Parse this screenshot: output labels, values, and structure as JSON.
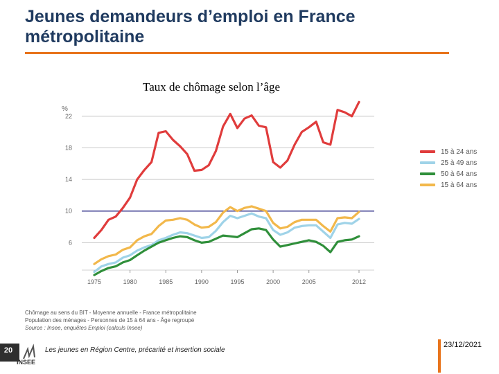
{
  "header": {
    "title_line1": "Jeunes demandeurs d’emploi en France",
    "title_line2": "métropolitaine"
  },
  "subtitle": "Taux de chômage selon l’âge",
  "colors": {
    "accent": "#e8741c",
    "title": "#1f3a5f",
    "reference_line": "#3b3b8f"
  },
  "chart_data": {
    "type": "line",
    "ylabel": "%",
    "xlim": [
      1975,
      2012
    ],
    "ylim": [
      2,
      24
    ],
    "yticks": [
      6,
      10,
      14,
      18,
      22
    ],
    "xticks": [
      "1975",
      "1980",
      "1985",
      "1990",
      "1995",
      "2000",
      "2005",
      "2012"
    ],
    "xtick_values": [
      1975,
      1980,
      1985,
      1990,
      1995,
      2000,
      2005,
      2012
    ],
    "reference_line": 10,
    "x": [
      1975,
      1976,
      1977,
      1978,
      1979,
      1980,
      1981,
      1982,
      1983,
      1984,
      1985,
      1986,
      1987,
      1988,
      1989,
      1990,
      1991,
      1992,
      1993,
      1994,
      1995,
      1996,
      1997,
      1998,
      1999,
      2000,
      2001,
      2002,
      2003,
      2004,
      2005,
      2006,
      2007,
      2008,
      2009,
      2010,
      2011,
      2012
    ],
    "series": [
      {
        "name": "15 à 24 ans",
        "color": "#e03c3c",
        "values": [
          6.6,
          7.6,
          8.9,
          9.3,
          10.4,
          11.7,
          14.0,
          15.2,
          16.2,
          19.9,
          20.1,
          19.0,
          18.2,
          17.2,
          15.1,
          15.2,
          15.8,
          17.6,
          20.7,
          22.3,
          20.5,
          21.7,
          22.1,
          20.8,
          20.6,
          16.2,
          15.5,
          16.4,
          18.4,
          20.0,
          20.6,
          21.3,
          18.7,
          18.4,
          22.8,
          22.5,
          22.0,
          23.8
        ]
      },
      {
        "name": "25 à 49 ans",
        "color": "#9fd3e8",
        "values": [
          2.3,
          3.0,
          3.3,
          3.5,
          4.1,
          4.4,
          5.0,
          5.4,
          5.7,
          6.3,
          6.6,
          7.0,
          7.3,
          7.2,
          6.9,
          6.6,
          6.7,
          7.5,
          8.6,
          9.4,
          9.1,
          9.4,
          9.7,
          9.3,
          9.1,
          7.6,
          7.0,
          7.3,
          7.9,
          8.1,
          8.2,
          8.2,
          7.4,
          6.6,
          8.3,
          8.5,
          8.4,
          9.0
        ]
      },
      {
        "name": "50 à 64 ans",
        "color": "#2f8f3a",
        "values": [
          1.9,
          2.4,
          2.8,
          3.0,
          3.5,
          3.8,
          4.4,
          5.0,
          5.5,
          6.0,
          6.3,
          6.6,
          6.8,
          6.7,
          6.3,
          6.0,
          6.1,
          6.5,
          6.9,
          6.8,
          6.7,
          7.2,
          7.7,
          7.8,
          7.6,
          6.4,
          5.5,
          5.7,
          5.9,
          6.1,
          6.3,
          6.1,
          5.6,
          4.8,
          6.1,
          6.3,
          6.4,
          6.8
        ]
      },
      {
        "name": "15 à 64 ans",
        "color": "#f2b84b",
        "values": [
          3.3,
          3.9,
          4.3,
          4.5,
          5.1,
          5.4,
          6.3,
          6.8,
          7.1,
          8.1,
          8.8,
          8.9,
          9.1,
          8.9,
          8.3,
          7.9,
          8.0,
          8.6,
          9.8,
          10.5,
          10.0,
          10.4,
          10.6,
          10.3,
          10.0,
          8.5,
          7.8,
          8.0,
          8.6,
          8.9,
          8.9,
          8.9,
          8.1,
          7.4,
          9.1,
          9.2,
          9.1,
          9.9
        ]
      }
    ]
  },
  "notes": {
    "line1": "Chômage au sens du BIT - Moyenne annuelle - France métropolitaine",
    "line2": "Population des ménages - Personnes de 15 à 64 ans - Âge regroupé",
    "line3": "Source : Insee, enquêtes Emploi (calculs Insee)"
  },
  "footer": {
    "page_number": "20",
    "logo_text": "INSEE",
    "caption": "Les jeunes en Région Centre, précarité et insertion sociale",
    "date": "23/12/2021"
  }
}
